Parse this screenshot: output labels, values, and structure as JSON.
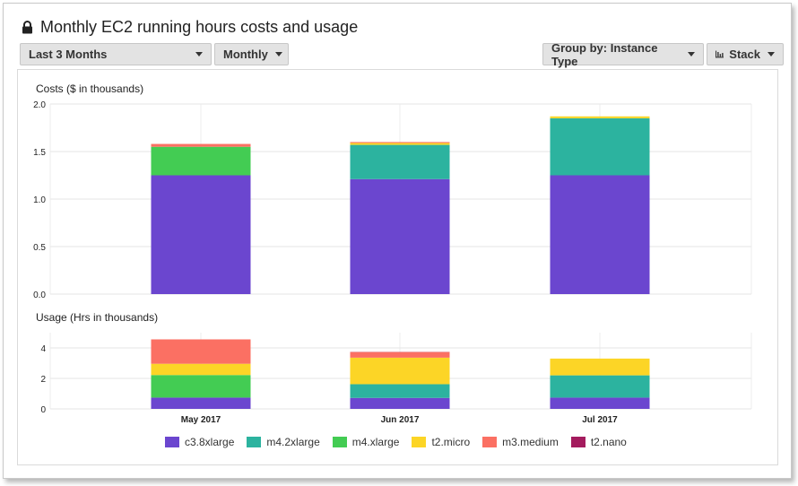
{
  "title": "Monthly EC2 running hours costs and usage",
  "controls": {
    "range_label": "Last 3 Months",
    "period_label": "Monthly",
    "group_label": "Group by: Instance Type",
    "stack_label": "Stack"
  },
  "icons": {
    "title": "lock-icon",
    "stack": "stacked-bars-icon",
    "dropdown": "caret-down-icon"
  },
  "colors": {
    "c3.8xlarge": "#6b46cf",
    "m4.2xlarge": "#2cb39f",
    "m4.xlarge": "#43cc53",
    "t2.micro": "#fcd526",
    "m3.medium": "#fb7063",
    "t2.nano": "#a41c5e"
  },
  "chart_data": [
    {
      "type": "bar",
      "stacked": true,
      "title": "Costs ($ in thousands)",
      "categories": [
        "May 2017",
        "Jun 2017",
        "Jul 2017"
      ],
      "ylim": [
        0,
        2.0
      ],
      "yticks": [
        "0.0",
        "0.5",
        "1.0",
        "1.5",
        "2.0"
      ],
      "grid": true,
      "series": [
        {
          "name": "c3.8xlarge",
          "values": [
            1.25,
            1.21,
            1.25
          ]
        },
        {
          "name": "m4.2xlarge",
          "values": [
            0,
            0.36,
            0.6
          ]
        },
        {
          "name": "m4.xlarge",
          "values": [
            0.3,
            0,
            0
          ]
        },
        {
          "name": "t2.micro",
          "values": [
            0,
            0.02,
            0.02
          ]
        },
        {
          "name": "m3.medium",
          "values": [
            0.03,
            0.01,
            0
          ]
        },
        {
          "name": "t2.nano",
          "values": [
            0,
            0,
            0
          ]
        }
      ]
    },
    {
      "type": "bar",
      "stacked": true,
      "title": "Usage (Hrs in thousands)",
      "categories": [
        "May 2017",
        "Jun 2017",
        "Jul 2017"
      ],
      "ylim": [
        0,
        5
      ],
      "yticks": [
        "0",
        "2",
        "4"
      ],
      "grid": true,
      "legend_position": "bottom",
      "series": [
        {
          "name": "c3.8xlarge",
          "values": [
            0.74,
            0.72,
            0.74
          ]
        },
        {
          "name": "m4.2xlarge",
          "values": [
            0,
            0.9,
            1.46
          ]
        },
        {
          "name": "m4.xlarge",
          "values": [
            1.48,
            0,
            0
          ]
        },
        {
          "name": "t2.micro",
          "values": [
            0.74,
            1.74,
            1.1
          ]
        },
        {
          "name": "m3.medium",
          "values": [
            1.6,
            0.37,
            0
          ]
        },
        {
          "name": "t2.nano",
          "values": [
            0,
            0.01,
            0
          ]
        }
      ]
    }
  ]
}
